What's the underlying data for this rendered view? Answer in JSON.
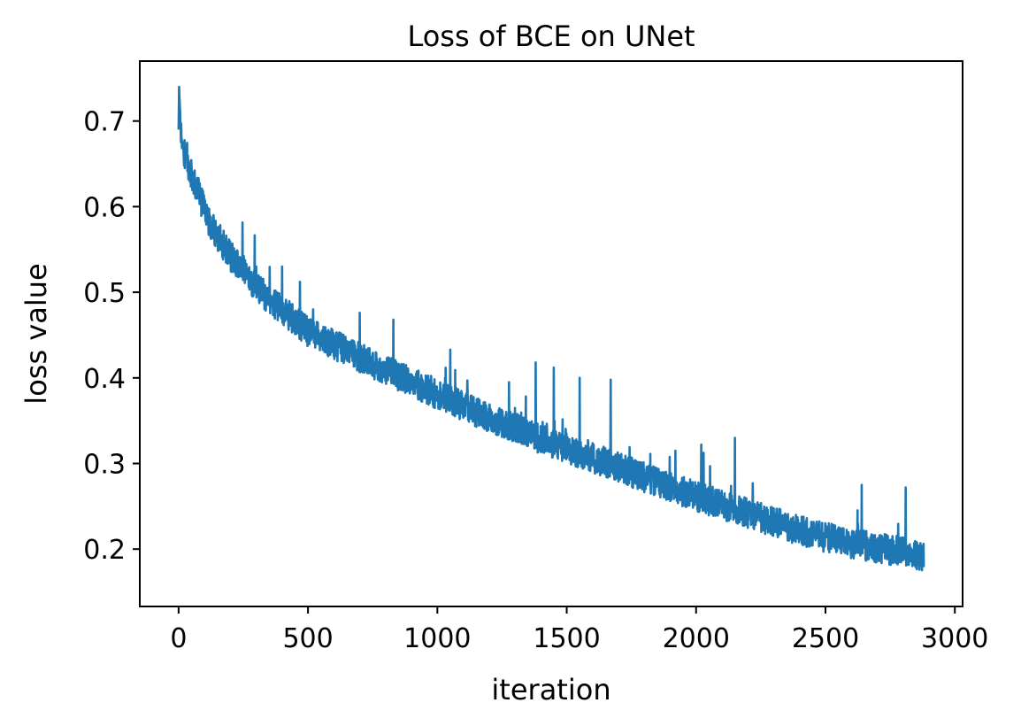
{
  "chart_data": {
    "type": "line",
    "title": "Loss of BCE on UNet",
    "xlabel": "iteration",
    "ylabel": "loss value",
    "xlim": [
      -150,
      3030
    ],
    "ylim": [
      0.133,
      0.77
    ],
    "xticks": [
      0,
      500,
      1000,
      1500,
      2000,
      2500,
      3000
    ],
    "yticks": [
      0.2,
      0.3,
      0.4,
      0.5,
      0.6,
      0.7
    ],
    "xtick_labels": [
      "0",
      "500",
      "1000",
      "1500",
      "2000",
      "2500",
      "3000"
    ],
    "ytick_labels": [
      "0.2",
      "0.3",
      "0.4",
      "0.5",
      "0.6",
      "0.7"
    ],
    "grid": false,
    "line_color": "#1f77b4",
    "series": [
      {
        "x": [
          0,
          2,
          5,
          10,
          20,
          30,
          40,
          50,
          60,
          70,
          80,
          90,
          100,
          120,
          150,
          200,
          250,
          300,
          350,
          400,
          450,
          500,
          550,
          600,
          650,
          700,
          750,
          800,
          850,
          900,
          950,
          1000,
          1100,
          1200,
          1300,
          1400,
          1500,
          1600,
          1700,
          1800,
          1900,
          2000,
          2100,
          2200,
          2300,
          2400,
          2500,
          2600,
          2700,
          2800,
          2880
        ],
        "values": [
          0.69,
          0.74,
          0.71,
          0.68,
          0.66,
          0.655,
          0.645,
          0.635,
          0.628,
          0.62,
          0.612,
          0.603,
          0.595,
          0.58,
          0.565,
          0.54,
          0.525,
          0.505,
          0.49,
          0.478,
          0.465,
          0.452,
          0.445,
          0.437,
          0.43,
          0.422,
          0.415,
          0.408,
          0.4,
          0.393,
          0.386,
          0.378,
          0.365,
          0.352,
          0.34,
          0.327,
          0.316,
          0.305,
          0.294,
          0.282,
          0.271,
          0.26,
          0.25,
          0.24,
          0.23,
          0.22,
          0.212,
          0.205,
          0.2,
          0.195,
          0.19
        ],
        "noise_amplitude": 0.035,
        "spikes": [
          {
            "x": 300,
            "value": 0.53
          },
          {
            "x": 400,
            "value": 0.53
          },
          {
            "x": 700,
            "value": 0.476
          },
          {
            "x": 830,
            "value": 0.468
          },
          {
            "x": 1050,
            "value": 0.433
          },
          {
            "x": 1380,
            "value": 0.418
          },
          {
            "x": 1450,
            "value": 0.412
          },
          {
            "x": 1550,
            "value": 0.4
          },
          {
            "x": 1670,
            "value": 0.398
          },
          {
            "x": 2020,
            "value": 0.322
          },
          {
            "x": 2150,
            "value": 0.33
          },
          {
            "x": 2640,
            "value": 0.275
          },
          {
            "x": 2810,
            "value": 0.272
          }
        ]
      }
    ]
  }
}
